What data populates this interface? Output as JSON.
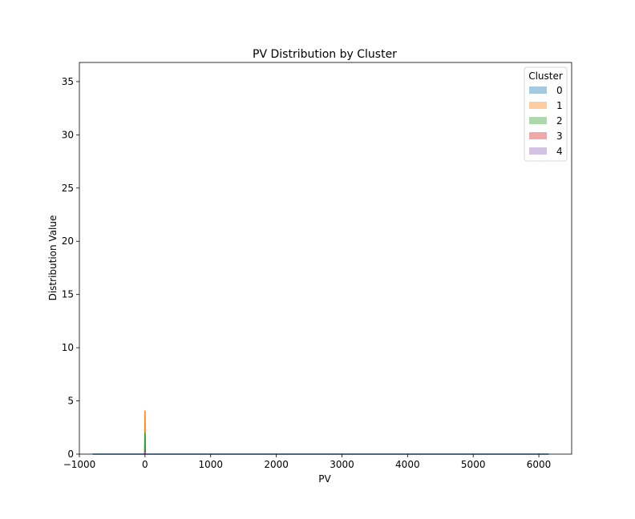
{
  "chart_data": {
    "type": "area",
    "title": "PV Distribution by Cluster",
    "xlabel": "PV",
    "ylabel": "Distribution Value",
    "xlim": [
      -1000,
      6500
    ],
    "ylim": [
      0,
      36.8
    ],
    "xticks": [
      -1000,
      0,
      1000,
      2000,
      3000,
      4000,
      5000,
      6000
    ],
    "yticks": [
      0,
      5,
      10,
      15,
      20,
      25,
      30,
      35
    ],
    "grid": false,
    "legend": {
      "title": "Cluster",
      "placement": "top-right"
    },
    "series": [
      {
        "name": "0",
        "color": "#1f77b4",
        "points": [
          [
            -800,
            0
          ],
          [
            6150,
            0
          ]
        ]
      },
      {
        "name": "1",
        "color": "#ff7f0e",
        "points": [
          [
            -5,
            0
          ],
          [
            0,
            4.1
          ],
          [
            5,
            0
          ]
        ]
      },
      {
        "name": "2",
        "color": "#2ca02c",
        "points": [
          [
            -5,
            0
          ],
          [
            0,
            2.0
          ],
          [
            5,
            0
          ]
        ]
      },
      {
        "name": "3",
        "color": "#d62728",
        "points": [
          [
            -5,
            0
          ],
          [
            0,
            0.3
          ],
          [
            5,
            0
          ]
        ]
      },
      {
        "name": "4",
        "color": "#9467bd",
        "points": [
          [
            -5,
            0
          ],
          [
            0,
            0.2
          ],
          [
            5,
            0
          ]
        ]
      }
    ]
  }
}
